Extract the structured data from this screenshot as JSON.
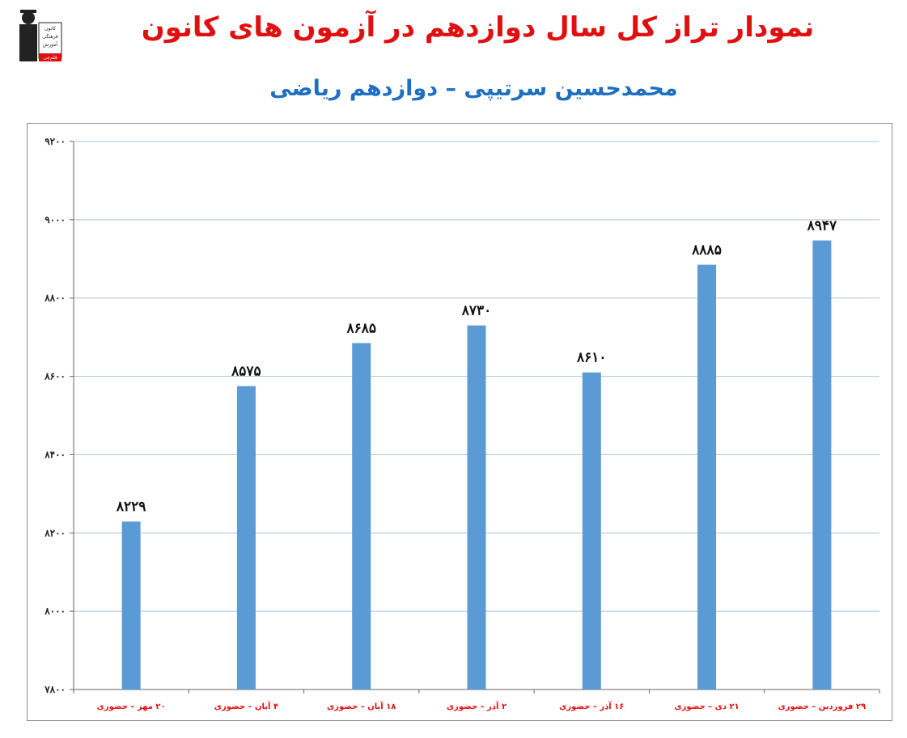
{
  "header": {
    "title": "نمودار تراز کل سال دوازدهم در آزمون های کانون",
    "subtitle": "محمدحسین سرتیپی – دوازدهم ریاضی",
    "logo_text": [
      "کانون",
      "فرهنگی",
      "آموزش",
      "قلم‌چی"
    ]
  },
  "colors": {
    "title": "#e01010",
    "subtitle": "#1f6fc0",
    "bar": "#5b9bd5",
    "grid": "#a9c4e4",
    "xtick": "#e01010"
  },
  "chart_data": {
    "type": "bar",
    "categories": [
      "۲۰ مهر – حضوری",
      "۴ آبان – حضوری",
      "۱۸ آبان – حضوری",
      "۲ آذر – حضوری",
      "۱۶ آذر – حضوری",
      "۲۱ دی – حضوری",
      "۲۹ فروردین – حضوری"
    ],
    "values": [
      8229,
      8575,
      8685,
      8730,
      8610,
      8885,
      8947
    ],
    "value_labels": [
      "۸۲۲۹",
      "۸۵۷۵",
      "۸۶۸۵",
      "۸۷۳۰",
      "۸۶۱۰",
      "۸۸۸۵",
      "۸۹۴۷"
    ],
    "ylim": [
      7800,
      9200
    ],
    "yticks": [
      7800,
      8000,
      8200,
      8400,
      8600,
      8800,
      9000,
      9200
    ],
    "ytick_labels": [
      "۷۸۰۰",
      "۸۰۰۰",
      "۸۲۰۰",
      "۸۴۰۰",
      "۸۶۰۰",
      "۸۸۰۰",
      "۹۰۰۰",
      "۹۲۰۰"
    ],
    "grid": true,
    "legend": "none"
  }
}
